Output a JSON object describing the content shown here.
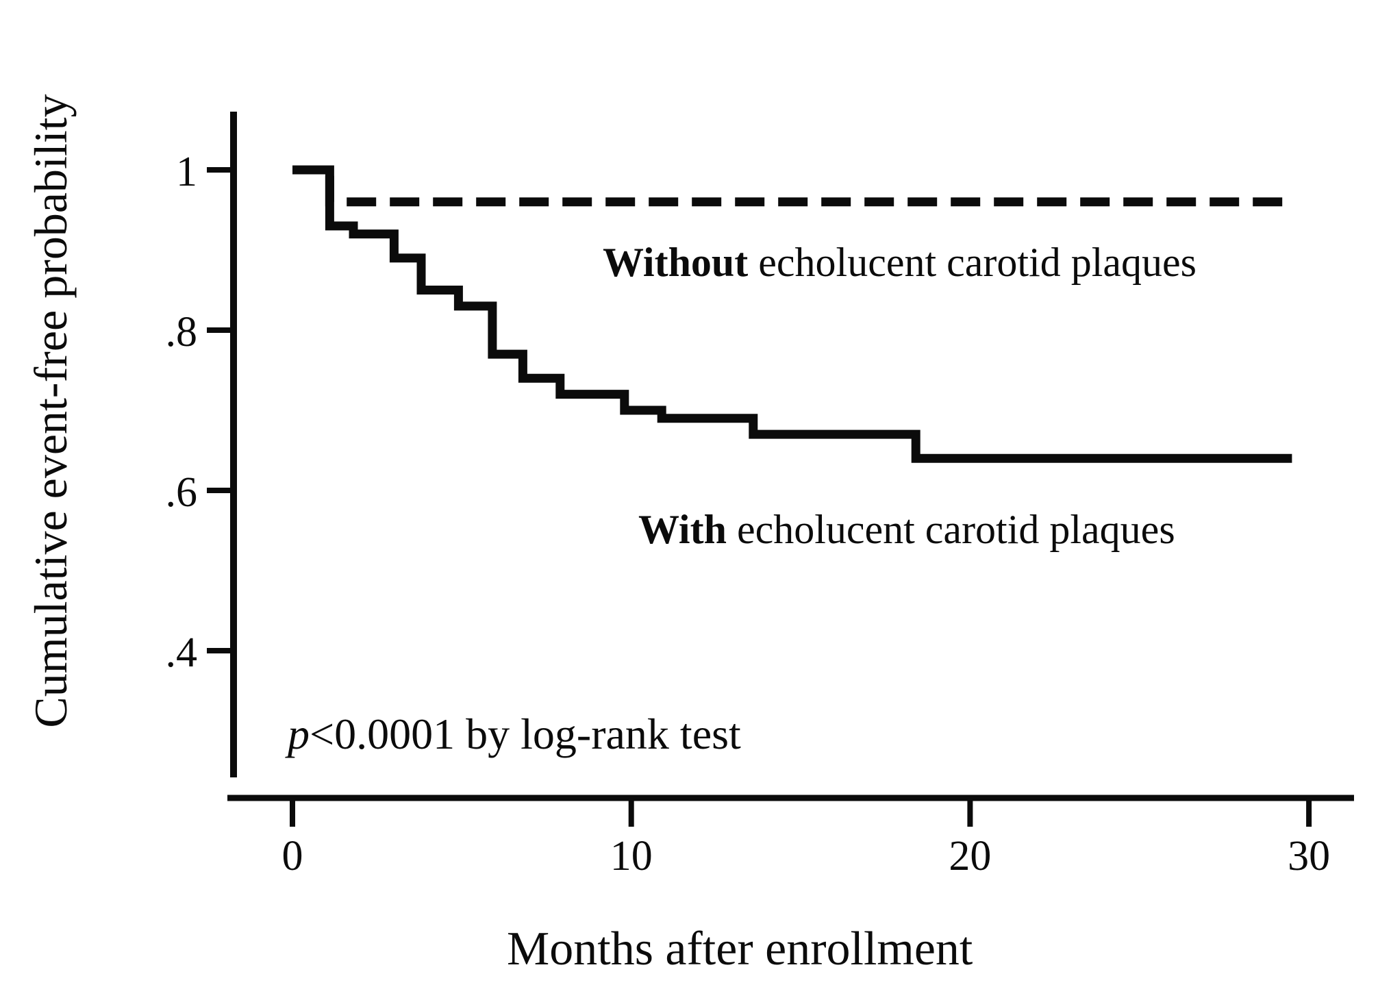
{
  "figure": {
    "background_color": "#ffffff",
    "ink_color": "#0b0b0b"
  },
  "chart_data": {
    "type": "line",
    "subtype": "kaplan-meier-step",
    "title": "",
    "xlabel": "Months after enrollment",
    "ylabel": "Cumulative event-free probability",
    "xlim": [
      0,
      30
    ],
    "ylim": [
      0.25,
      1.05
    ],
    "grid": false,
    "legend_position": "inline-annotations",
    "x_ticks": [
      {
        "label": "0",
        "value": 0
      },
      {
        "label": "10",
        "value": 10
      },
      {
        "label": "20",
        "value": 20
      },
      {
        "label": "30",
        "value": 30
      }
    ],
    "y_ticks": [
      {
        "label": "1",
        "value": 1.0
      },
      {
        "label": ".8",
        "value": 0.8
      },
      {
        "label": ".6",
        "value": 0.6
      },
      {
        "label": ".4",
        "value": 0.4
      }
    ],
    "series": [
      {
        "name": "Without echolucent carotid plaques",
        "style": "dashed",
        "points": [
          [
            0,
            1.0
          ],
          [
            1.1,
            0.96
          ],
          [
            29.5,
            0.96
          ]
        ]
      },
      {
        "name": "With echolucent carotid plaques",
        "style": "solid",
        "points": [
          [
            0,
            1.0
          ],
          [
            1.1,
            0.93
          ],
          [
            1.8,
            0.92
          ],
          [
            3.0,
            0.89
          ],
          [
            3.8,
            0.85
          ],
          [
            4.9,
            0.83
          ],
          [
            5.9,
            0.77
          ],
          [
            6.8,
            0.74
          ],
          [
            7.9,
            0.72
          ],
          [
            9.8,
            0.7
          ],
          [
            10.9,
            0.69
          ],
          [
            13.6,
            0.67
          ],
          [
            18.4,
            0.64
          ],
          [
            29.5,
            0.64
          ]
        ]
      }
    ],
    "annotations": {
      "without_label_bold": "Without",
      "without_label_rest": " echolucent carotid plaques",
      "with_label_bold": "With",
      "with_label_rest": " echolucent carotid plaques",
      "p_value_italic": "p",
      "p_value_rest": "<0.0001 by log-rank test"
    }
  }
}
